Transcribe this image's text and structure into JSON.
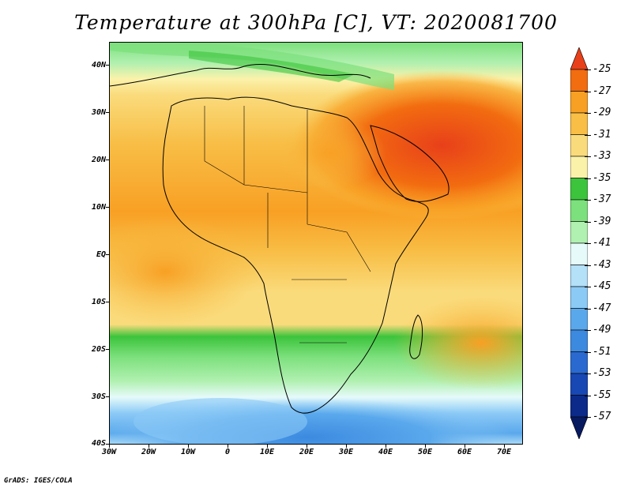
{
  "title": "Temperature at 300hPa [C], VT: 2020081700",
  "credit": "GrADS: IGES/COLA",
  "lat_labels": [
    "40N",
    "30N",
    "20N",
    "10N",
    "EQ",
    "10S",
    "20S",
    "30S",
    "40S"
  ],
  "lon_labels": [
    "30W",
    "20W",
    "10W",
    "0",
    "10E",
    "20E",
    "30E",
    "40E",
    "50E",
    "60E",
    "70E"
  ],
  "colorbar": {
    "labels": [
      "-25",
      "-27",
      "-29",
      "-31",
      "-33",
      "-35",
      "-37",
      "-39",
      "-41",
      "-43",
      "-45",
      "-47",
      "-49",
      "-51",
      "-53",
      "-55",
      "-57"
    ],
    "colors": [
      "#e8401a",
      "#f26c10",
      "#f8a024",
      "#f8be46",
      "#fadb7c",
      "#fbf2aa",
      "#3cc43c",
      "#7ce07c",
      "#b0f0b0",
      "#e6fafa",
      "#b4e0f8",
      "#8ccaf6",
      "#5aa8ec",
      "#3c8ae0",
      "#2a6ad0",
      "#1848b4",
      "#0c2a8a",
      "#081a60"
    ]
  },
  "map_colors": {
    "ocean_warm": "#f8be46",
    "hot_core": "#e8401a",
    "cold_south": "#3c8ae0"
  }
}
